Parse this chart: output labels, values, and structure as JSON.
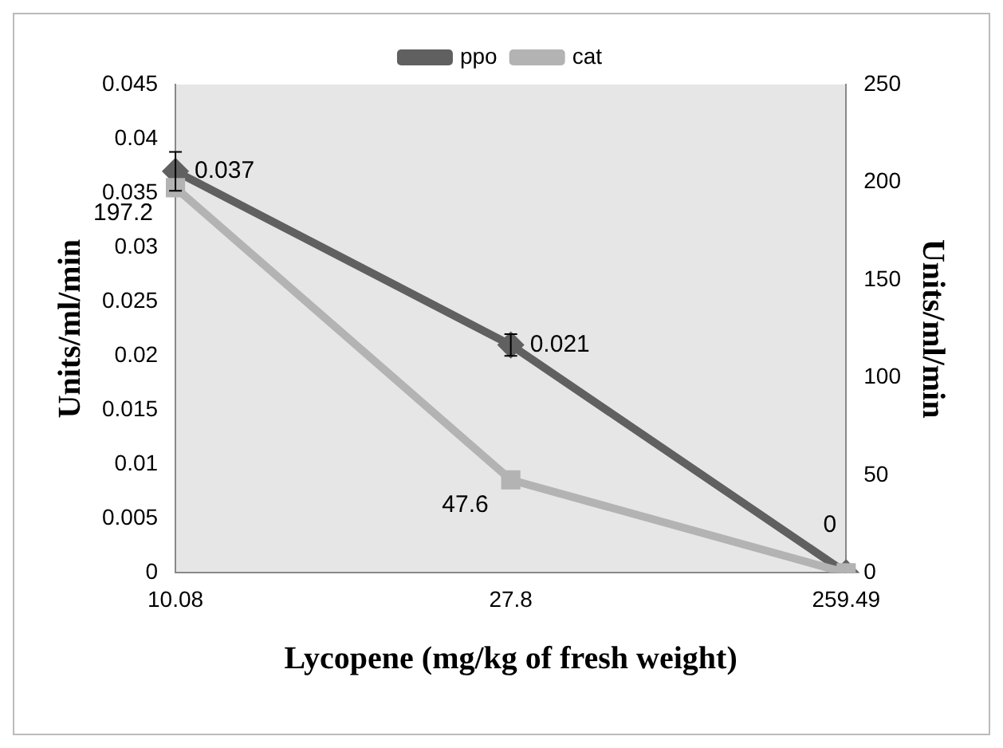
{
  "chart_data": {
    "type": "line",
    "xlabel": "Lycopene (mg/kg of fresh weight)",
    "ylabel": "Units/ml/min",
    "y2label": "Units/ml/min",
    "categories": [
      "10.08",
      "27.8",
      "259.49"
    ],
    "series": [
      {
        "name": "ppo",
        "color": "#606060",
        "values": [
          0.037,
          0.021,
          0
        ],
        "errors": [
          0.0018,
          0.001,
          null
        ],
        "marker": "diamond",
        "value_labels": [
          "0.037",
          "0.021",
          "0"
        ]
      },
      {
        "name": "cat",
        "color": "#b3b3b3",
        "values": [
          197.2,
          47.6,
          0
        ],
        "axis": "y2",
        "marker": "square",
        "value_labels": [
          "197.2",
          "47.6",
          null
        ]
      }
    ],
    "ylim": [
      0,
      0.045
    ],
    "yticks": [
      0,
      0.005,
      0.01,
      0.015,
      0.02,
      0.025,
      0.03,
      0.035,
      0.04,
      0.045
    ],
    "y2lim": [
      0,
      250
    ],
    "y2ticks": [
      0,
      50,
      100,
      150,
      200,
      250
    ],
    "legend": "top",
    "grid": false
  }
}
